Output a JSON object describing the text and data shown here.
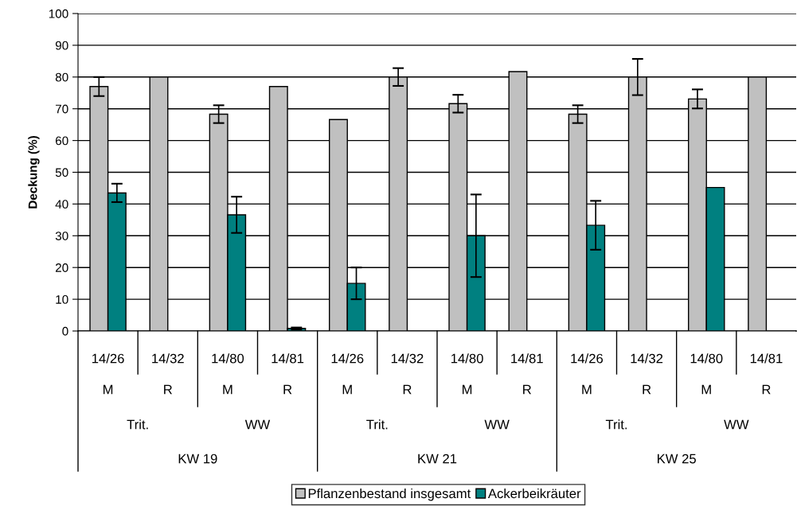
{
  "chart_data": {
    "type": "bar",
    "ylabel": "Deckung (%)",
    "categories": [
      "14/26",
      "14/32",
      "14/80",
      "14/81",
      "14/26",
      "14/32",
      "14/80",
      "14/81",
      "14/26",
      "14/32",
      "14/80",
      "14/81"
    ],
    "annotations": [
      "M",
      "R",
      "M",
      "R",
      "M",
      "R",
      "M",
      "R",
      "M",
      "R",
      "M",
      "R",
      "Trit.",
      "WW",
      "Trit.",
      "WW",
      "Trit.",
      "WW",
      "KW 19",
      "KW 21",
      "KW 25"
    ],
    "series": [
      {
        "name": "Pflanzenbestand insgesamt",
        "color": "#c0c0c0",
        "values": [
          77,
          80,
          68.3,
          77,
          66.6,
          80,
          71.6,
          81.7,
          68.3,
          80,
          73.1,
          80
        ],
        "errors": [
          3,
          null,
          2.8,
          null,
          null,
          2.8,
          2.8,
          null,
          2.8,
          5.7,
          3,
          null
        ]
      },
      {
        "name": "Ackerbeikräuter",
        "color": "#008080",
        "values": [
          43.5,
          null,
          36.6,
          0.8,
          15,
          null,
          30,
          null,
          33.3,
          null,
          45.2,
          null
        ],
        "errors": [
          2.9,
          null,
          5.7,
          0.3,
          5,
          null,
          13,
          null,
          7.7,
          null,
          null,
          null
        ]
      }
    ],
    "ylim": [
      0,
      100
    ],
    "yticks": [
      0,
      10,
      20,
      30,
      40,
      50,
      60,
      70,
      80,
      90,
      100
    ],
    "grid": "y",
    "legend": "bottom"
  }
}
